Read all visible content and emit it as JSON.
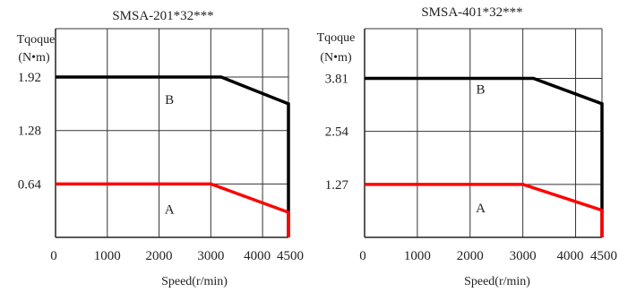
{
  "chart_data": [
    {
      "type": "line",
      "title": "SMSA-201*32***",
      "ylabel_line1": "Tqoque",
      "ylabel_line2": "(N•m)",
      "xlabel": "Speed(r/min)",
      "x_ticks": [
        "0",
        "1000",
        "2000",
        "3000",
        "4000",
        "4500"
      ],
      "x_tick_values": [
        0,
        1000,
        2000,
        3000,
        4000,
        4500
      ],
      "y_ticks": [
        "0.64",
        "1.28",
        "1.92"
      ],
      "y_tick_values": [
        0.64,
        1.28,
        1.92
      ],
      "xlim": [
        0,
        4500
      ],
      "ylim": [
        0,
        2.5
      ],
      "grid": true,
      "region_labels": [
        {
          "label": "B",
          "x": 2200,
          "y": 1.65
        },
        {
          "label": "A",
          "x": 2200,
          "y": 0.34
        }
      ],
      "series": [
        {
          "color": "#000000",
          "x": [
            0,
            3200,
            4500,
            4500,
            4500
          ],
          "y": [
            1.92,
            1.92,
            1.6,
            0.3,
            0.0
          ]
        },
        {
          "color": "#ff0000",
          "x": [
            0,
            3000,
            4500,
            4500
          ],
          "y": [
            0.64,
            0.64,
            0.3,
            0.0
          ]
        }
      ]
    },
    {
      "type": "line",
      "title": "SMSA-401*32***",
      "ylabel_line1": "Tqoque",
      "ylabel_line2": "(N•m)",
      "xlabel": "Speed(r/min)",
      "x_ticks": [
        "0",
        "1000",
        "2000",
        "3000",
        "4000",
        "4500"
      ],
      "x_tick_values": [
        0,
        1000,
        2000,
        3000,
        4000,
        4500
      ],
      "y_ticks": [
        "1.27",
        "2.54",
        "3.81"
      ],
      "y_tick_values": [
        1.27,
        2.54,
        3.81
      ],
      "xlim": [
        0,
        4500
      ],
      "ylim": [
        0,
        5.0
      ],
      "grid": true,
      "region_labels": [
        {
          "label": "B",
          "x": 2200,
          "y": 3.55
        },
        {
          "label": "A",
          "x": 2200,
          "y": 0.71
        }
      ],
      "series": [
        {
          "color": "#000000",
          "x": [
            0,
            3200,
            4500,
            4500,
            4500
          ],
          "y": [
            3.81,
            3.81,
            3.2,
            0.65,
            0.0
          ]
        },
        {
          "color": "#ff0000",
          "x": [
            0,
            3000,
            4500,
            4500
          ],
          "y": [
            1.27,
            1.27,
            0.65,
            0.0
          ]
        }
      ]
    }
  ]
}
